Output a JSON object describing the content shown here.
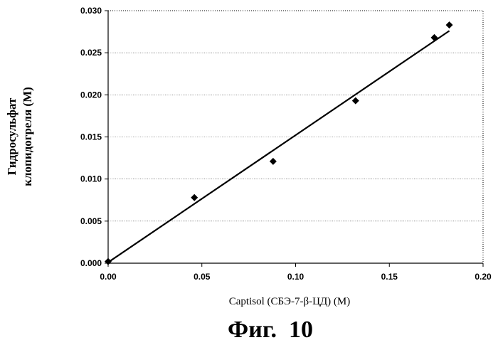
{
  "chart_data": {
    "type": "scatter",
    "xlabel": "Captisol (СБЭ-7-β-ЦД) (М)",
    "ylabel_lines": [
      "Гидросульфат",
      "клопидогреля (М)"
    ],
    "x_ticks": [
      "0.00",
      "0.05",
      "0.10",
      "0.15",
      "0.20"
    ],
    "y_ticks": [
      "0.000",
      "0.005",
      "0.010",
      "0.015",
      "0.020",
      "0.025",
      "0.030"
    ],
    "xlim": [
      0,
      0.2
    ],
    "ylim": [
      0,
      0.03
    ],
    "grid": "horizontal",
    "series": [
      {
        "marker": "diamond",
        "x": [
          0.0,
          0.046,
          0.088,
          0.132,
          0.174,
          0.182
        ],
        "y": [
          0.0002,
          0.0078,
          0.0121,
          0.0193,
          0.0268,
          0.0283
        ]
      }
    ],
    "trendline": {
      "x": [
        0.0,
        0.182
      ],
      "y": [
        0.0001,
        0.0276
      ]
    }
  },
  "caption": "Фиг.  10"
}
